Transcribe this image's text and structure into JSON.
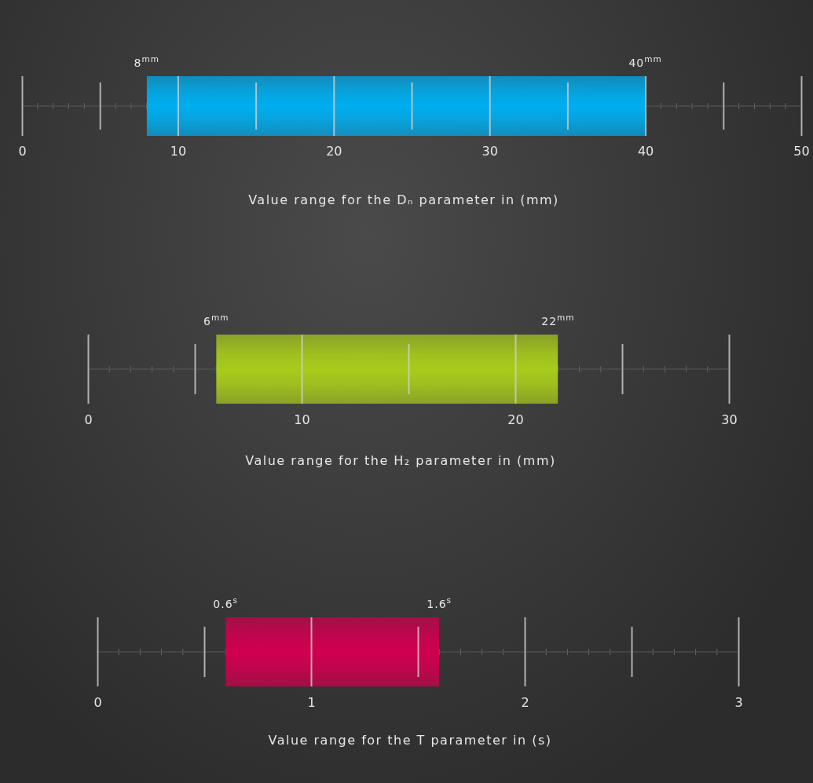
{
  "chart_data": [
    {
      "type": "bar",
      "orientation": "horizontal",
      "categories": [
        null
      ],
      "base": [
        8
      ],
      "values": [
        32
      ],
      "color": "#00aeef",
      "xlim": [
        0,
        50
      ],
      "xticks": [
        0,
        {
          "value": 5,
          "label": null
        },
        10,
        {
          "value": 15,
          "label": null
        },
        20,
        {
          "value": 25,
          "label": null
        },
        30,
        {
          "value": 35,
          "label": null
        },
        40,
        {
          "value": 45,
          "label": null
        },
        50
      ],
      "xlabel": "Value range for the Dₙ parameter in (mm)",
      "grid": "x",
      "annotations": [
        "8$^{mm}$",
        "40$^{mm}$"
      ]
    },
    {
      "type": "bar",
      "orientation": "horizontal",
      "categories": [
        null
      ],
      "base": [
        6
      ],
      "values": [
        16
      ],
      "color": "#a8cc1c",
      "xlim": [
        0,
        30
      ],
      "xticks": [
        0,
        {
          "value": 5,
          "label": null
        },
        10,
        {
          "value": 15,
          "label": null
        },
        20,
        {
          "value": 25,
          "label": null
        },
        30
      ],
      "xlabel": "Value range for the H₂ parameter in (mm)",
      "grid": "x",
      "annotations": [
        "6$^{mm}$",
        "22$^{mm}$"
      ]
    },
    {
      "type": "bar",
      "orientation": "horizontal",
      "categories": [
        null
      ],
      "base": [
        0.6
      ],
      "values": [
        1.0
      ],
      "color": "#d0004f",
      "xlim": [
        0,
        3
      ],
      "xticks": [
        0,
        {
          "value": 0.5,
          "label": null
        },
        1,
        {
          "value": 1.5,
          "label": null
        },
        2,
        {
          "value": 2.5,
          "label": null
        },
        3
      ],
      "xlabel": "Value range for the T parameter in (s)",
      "grid": "x",
      "annotations": [
        "0.6$^{s}$",
        "1.6$^{s}$"
      ]
    }
  ]
}
